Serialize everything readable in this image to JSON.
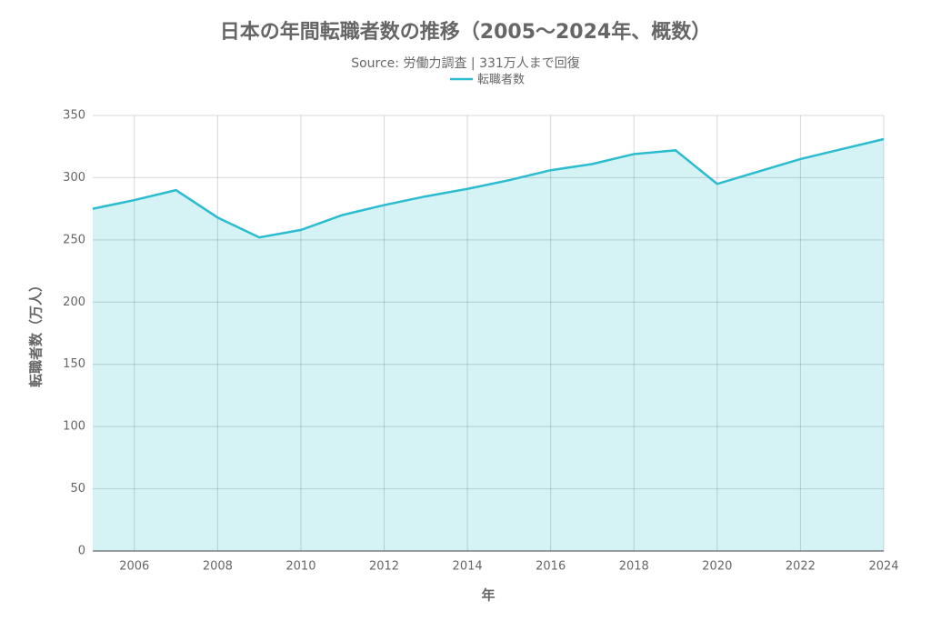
{
  "chart_data": {
    "type": "area",
    "title": "日本の年間転職者数の推移（2005〜2024年、概数）",
    "subtitle": "Source: 労働力調査 | 331万人まで回復",
    "x_label": "年",
    "y_label": "転職者数（万人）",
    "x": [
      2005,
      2006,
      2007,
      2008,
      2009,
      2010,
      2011,
      2012,
      2013,
      2014,
      2015,
      2016,
      2017,
      2018,
      2019,
      2020,
      2021,
      2022,
      2023,
      2024
    ],
    "series": [
      {
        "name": "転職者数",
        "color": "#2bbccf",
        "values": [
          275,
          282,
          290,
          268,
          252,
          258,
          270,
          278,
          285,
          291,
          298,
          306,
          311,
          319,
          322,
          295,
          305,
          315,
          323,
          331
        ]
      }
    ],
    "xlim": [
      2005,
      2024
    ],
    "xticks": [
      2006,
      2008,
      2010,
      2012,
      2014,
      2016,
      2018,
      2020,
      2022,
      2024
    ],
    "ylim": [
      0,
      350
    ],
    "yticks": [
      0,
      50,
      100,
      150,
      200,
      250,
      300,
      350
    ],
    "grid": true,
    "legend": "top"
  }
}
